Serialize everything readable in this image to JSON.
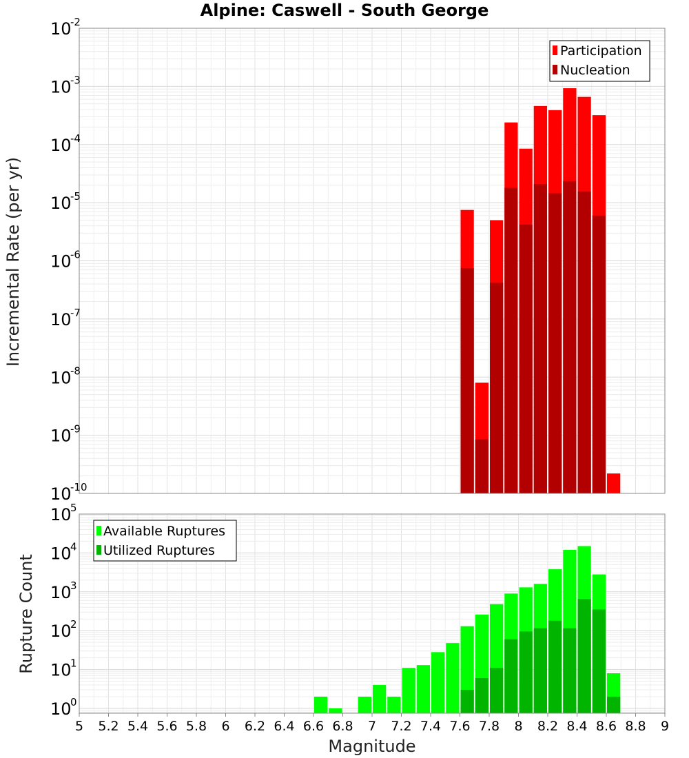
{
  "chart_data": [
    {
      "type": "bar",
      "title": "Alpine: Caswell - South George",
      "xlabel": "Magnitude",
      "ylabel": "Incremental Rate (per yr)",
      "y_scale": "log",
      "xlim": [
        5,
        9
      ],
      "ylim": [
        1e-10,
        0.01
      ],
      "bin_width": 0.1,
      "grid": true,
      "legend_position": "top-right",
      "series": [
        {
          "name": "Participation",
          "color": "#ff0000",
          "x": [
            7.65,
            7.75,
            7.85,
            7.95,
            8.05,
            8.15,
            8.25,
            8.35,
            8.45,
            8.55,
            8.65
          ],
          "values": [
            7.5e-06,
            8e-09,
            5e-06,
            0.00024,
            8.5e-05,
            0.00046,
            0.00039,
            0.00093,
            0.00066,
            0.00032,
            2.2e-10
          ]
        },
        {
          "name": "Nucleation",
          "color": "#b20000",
          "x": [
            7.65,
            7.75,
            7.85,
            7.95,
            8.05,
            8.15,
            8.25,
            8.35,
            8.45,
            8.55
          ],
          "values": [
            7.5e-07,
            8.5e-10,
            4.2e-07,
            1.8e-05,
            4.2e-06,
            2.1e-05,
            1.45e-05,
            2.35e-05,
            1.55e-05,
            6e-06
          ]
        }
      ]
    },
    {
      "type": "bar",
      "xlabel": "Magnitude",
      "ylabel": "Rupture Count",
      "y_scale": "log",
      "xlim": [
        5,
        9
      ],
      "ylim": [
        0.75,
        100000
      ],
      "bin_width": 0.1,
      "grid": true,
      "legend_position": "top-left",
      "x_ticks": [
        "5",
        "5.2",
        "5.4",
        "5.6",
        "5.8",
        "6",
        "6.2",
        "6.4",
        "6.6",
        "6.8",
        "7",
        "7.2",
        "7.4",
        "7.6",
        "7.8",
        "8",
        "8.2",
        "8.4",
        "8.6",
        "8.8",
        "9"
      ],
      "series": [
        {
          "name": "Available Ruptures",
          "color": "#00ff00",
          "x": [
            6.65,
            6.75,
            6.95,
            7.05,
            7.15,
            7.25,
            7.35,
            7.45,
            7.55,
            7.65,
            7.75,
            7.85,
            7.95,
            8.05,
            8.15,
            8.25,
            8.35,
            8.45,
            8.55,
            8.65
          ],
          "values": [
            2,
            1,
            2,
            4,
            2,
            11,
            13,
            28,
            48,
            130,
            260,
            480,
            900,
            1300,
            1600,
            3800,
            12000,
            15000,
            2800,
            8
          ]
        },
        {
          "name": "Utilized Ruptures",
          "color": "#00b400",
          "x": [
            7.65,
            7.75,
            7.85,
            7.95,
            8.05,
            8.15,
            8.25,
            8.35,
            8.45,
            8.55,
            8.65
          ],
          "values": [
            3,
            6,
            11,
            60,
            95,
            115,
            180,
            115,
            650,
            350,
            2
          ]
        }
      ]
    }
  ]
}
